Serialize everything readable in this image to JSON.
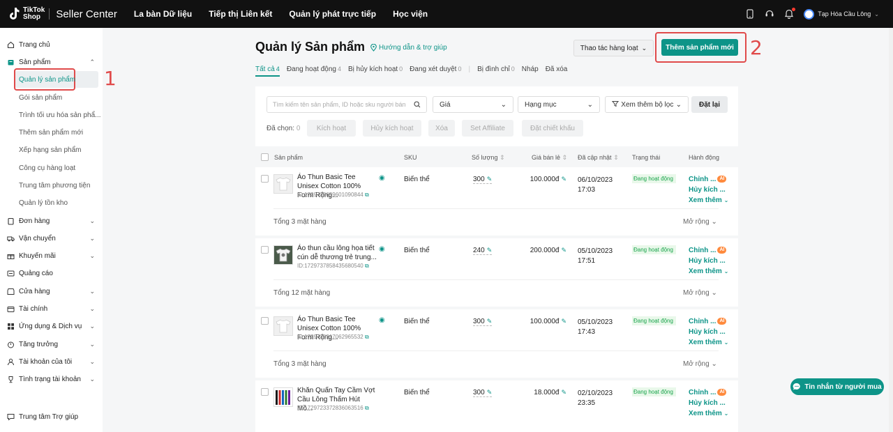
{
  "topbar": {
    "logo_line1": "TikTok",
    "logo_line2": "Shop",
    "app_title": "Seller Center",
    "nav": [
      "La bàn Dữ liệu",
      "Tiếp thị Liên kết",
      "Quản lý phát trực tiếp",
      "Học viện"
    ],
    "shop_name": "Tạp Hóa Cầu Lông"
  },
  "sidebar": {
    "home": "Trang chủ",
    "products": "Sản phẩm",
    "sub": [
      "Quản lý sản phẩm",
      "Gói sản phẩm",
      "Trình tối ưu hóa sản phẩ...",
      "Thêm sản phẩm mới",
      "Xếp hạng sản phẩm",
      "Công cụ hàng loạt",
      "Trung tâm phương tiện",
      "Quản lý tồn kho"
    ],
    "groups": [
      "Đơn hàng",
      "Vận chuyển",
      "Khuyến mãi",
      "Quảng cáo",
      "Cửa hàng",
      "Tài chính",
      "Ứng dụng & Dịch vụ",
      "Tăng trưởng",
      "Tài khoản của tôi",
      "Tình trạng tài khoản"
    ],
    "help": "Trung tâm Trợ giúp"
  },
  "annotations": {
    "one": "1",
    "two": "2"
  },
  "header": {
    "title": "Quản lý Sản phẩm",
    "help_link": "Hướng dẫn & trợ giúp",
    "bulk_actions": "Thao tác hàng loạt",
    "add_product": "Thêm sản phẩm mới"
  },
  "tabs": [
    {
      "label": "Tất cả",
      "count": "4"
    },
    {
      "label": "Đang hoạt động",
      "count": "4"
    },
    {
      "label": "Bị hủy kích hoạt",
      "count": "0"
    },
    {
      "label": "Đang xét duyệt",
      "count": "0"
    },
    {
      "label": "Bị đình chỉ",
      "count": "0"
    },
    {
      "label": "Nháp",
      "count": ""
    },
    {
      "label": "Đã xóa",
      "count": ""
    }
  ],
  "filters": {
    "search_placeholder": "Tìm kiếm tên sản phẩm, ID hoặc sku người bán",
    "price": "Giá",
    "category": "Hạng mục",
    "more_filters": "Xem thêm bộ lọc",
    "reset": "Đặt lại",
    "selected_label": "Đã chọn:",
    "selected_count": "0",
    "actions": [
      "Kích hoạt",
      "Hủy kích hoạt",
      "Xóa",
      "Set Affiliate",
      "Đặt chiết khấu"
    ]
  },
  "table": {
    "columns": [
      "Sản phẩm",
      "SKU",
      "Số lượng",
      "Giá bán lẻ",
      "Đã cập nhật",
      "Trạng thái",
      "Hành động"
    ],
    "rows": [
      {
        "name": "Áo Thun Basic Tee Unisex Cotton 100% Form Rộng...",
        "id": "ID:1729738659601090844",
        "sku": "Biến thể",
        "qty": "300",
        "price": "100.000đ",
        "date": "06/10/2023",
        "time": "17:03",
        "status": "Đang hoạt động",
        "total": "Tổng 3 mặt hàng"
      },
      {
        "name": "Áo thun cầu lông họa tiết cún dễ thương trẻ trung...",
        "id": "ID:1729737858435680540",
        "sku": "Biến thể",
        "qty": "240",
        "price": "200.000đ",
        "date": "05/10/2023",
        "time": "17:51",
        "status": "Đang hoạt động",
        "total": "Tổng 12 mặt hàng"
      },
      {
        "name": "Áo Thun Basic Tee Unisex Cotton 100% Form Rộng...",
        "id": "ID:1729738317062965532",
        "sku": "Biến thể",
        "qty": "300",
        "price": "100.000đ",
        "date": "05/10/2023",
        "time": "17:43",
        "status": "Đang hoạt động",
        "total": "Tổng 3 mặt hàng"
      },
      {
        "name": "Khăn Quấn Tay Cầm Vợt Cầu Lông Thấm Hút Mồ...",
        "id": "ID:1729723372836063516",
        "sku": "Biến thể",
        "qty": "300",
        "price": "18.000đ",
        "date": "02/10/2023",
        "time": "23:35",
        "status": "Đang hoạt động",
        "total": ""
      }
    ],
    "action_edit": "Chỉnh ...",
    "action_ai": "AI",
    "action_deactivate": "Hủy kích ...",
    "action_more": "Xem thêm",
    "expand": "Mở rộng"
  },
  "chat": "Tin nhắn từ người mua"
}
